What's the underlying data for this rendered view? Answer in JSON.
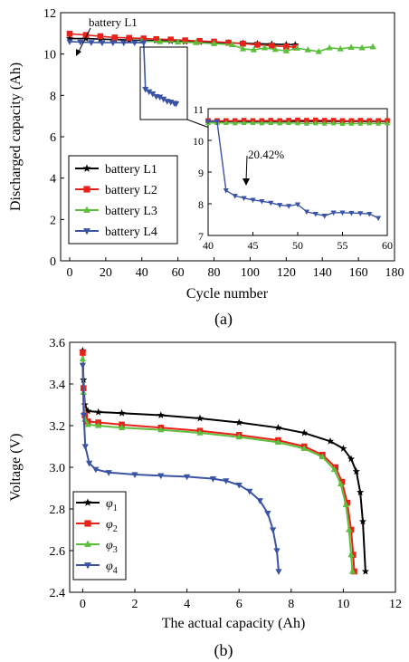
{
  "figure": {
    "panel_a_label": "(a)",
    "panel_b_label": "(b)"
  },
  "chart_data": [
    {
      "type": "line",
      "xlabel": "Cycle number",
      "ylabel": "Discharged capacity (Ah)",
      "xlim": [
        -5,
        180
      ],
      "ylim": [
        0,
        12
      ],
      "xticks": [
        0,
        20,
        40,
        60,
        80,
        100,
        120,
        140,
        160,
        180
      ],
      "yticks": [
        0,
        2,
        4,
        6,
        8,
        10,
        12
      ],
      "legend_position": "bottom-left",
      "annotation": "battery L1",
      "series": [
        {
          "name": "battery L1",
          "color": "#000000",
          "marker": "star",
          "x": [
            0,
            9,
            17,
            25,
            33,
            41,
            48,
            56,
            64,
            72,
            80,
            88,
            96,
            104,
            112,
            120,
            125
          ],
          "y": [
            10.75,
            10.75,
            10.72,
            10.7,
            10.68,
            10.66,
            10.65,
            10.63,
            10.6,
            10.58,
            10.56,
            10.54,
            10.52,
            10.5,
            10.48,
            10.46,
            10.45
          ]
        },
        {
          "name": "battery L2",
          "color": "#e8221a",
          "marker": "square",
          "x": [
            0,
            9,
            17,
            25,
            33,
            41,
            48,
            56,
            64,
            72,
            80,
            88,
            96,
            104,
            112,
            120,
            125
          ],
          "y": [
            10.98,
            10.92,
            10.86,
            10.8,
            10.78,
            10.75,
            10.72,
            10.7,
            10.66,
            10.63,
            10.6,
            10.55,
            10.5,
            10.45,
            10.4,
            10.36,
            10.33
          ]
        },
        {
          "name": "battery L3",
          "color": "#5bbf3c",
          "marker": "triangle-up",
          "x": [
            40,
            50,
            60,
            70,
            80,
            90,
            96,
            102,
            108,
            114,
            120,
            126,
            132,
            138,
            144,
            150,
            156,
            162,
            168
          ],
          "y": [
            10.62,
            10.6,
            10.58,
            10.55,
            10.5,
            10.45,
            10.25,
            10.2,
            10.3,
            10.22,
            10.15,
            10.28,
            10.2,
            10.12,
            10.3,
            10.25,
            10.32,
            10.3,
            10.35
          ]
        },
        {
          "name": "battery L4",
          "color": "#3a53a4",
          "marker": "triangle-down",
          "x": [
            0,
            6,
            12,
            18,
            24,
            30,
            36,
            41,
            42,
            44,
            46,
            48,
            50,
            52,
            54,
            56,
            58,
            59
          ],
          "y": [
            10.6,
            10.58,
            10.56,
            10.55,
            10.55,
            10.55,
            10.55,
            10.55,
            8.3,
            8.18,
            8.08,
            7.95,
            7.92,
            7.82,
            7.72,
            7.68,
            7.62,
            7.6
          ]
        }
      ]
    },
    {
      "type": "line",
      "inset": true,
      "xlim": [
        40,
        60
      ],
      "ylim": [
        7,
        11
      ],
      "xticks": [
        40,
        45,
        50,
        55,
        60
      ],
      "yticks": [
        7,
        8,
        9,
        10,
        11
      ],
      "annotation": "20.42%",
      "series": [
        {
          "name": "battery L1",
          "color": "#000000",
          "marker": "star",
          "x": [
            40,
            42,
            44,
            46,
            48,
            50,
            52,
            54,
            56,
            58,
            60
          ],
          "y": [
            10.6,
            10.6,
            10.6,
            10.6,
            10.6,
            10.6,
            10.6,
            10.6,
            10.6,
            10.6,
            10.6
          ]
        },
        {
          "name": "battery L2",
          "color": "#e8221a",
          "marker": "square",
          "x": [
            40,
            41,
            42,
            43,
            44,
            45,
            46,
            47,
            48,
            49,
            50,
            51,
            52,
            53,
            54,
            55,
            56,
            57,
            58,
            59,
            60
          ],
          "y": [
            10.62,
            10.62,
            10.62,
            10.62,
            10.63,
            10.62,
            10.62,
            10.63,
            10.62,
            10.63,
            10.64,
            10.63,
            10.64,
            10.63,
            10.63,
            10.62,
            10.62,
            10.63,
            10.62,
            10.62,
            10.62
          ]
        },
        {
          "name": "battery L3",
          "color": "#5bbf3c",
          "marker": "triangle-up",
          "x": [
            40,
            41,
            42,
            43,
            44,
            45,
            46,
            47,
            48,
            49,
            50,
            51,
            52,
            53,
            54,
            55,
            56,
            57,
            58,
            59,
            60
          ],
          "y": [
            10.55,
            10.55,
            10.55,
            10.54,
            10.55,
            10.55,
            10.54,
            10.55,
            10.54,
            10.55,
            10.54,
            10.53,
            10.54,
            10.53,
            10.54,
            10.52,
            10.53,
            10.53,
            10.54,
            10.53,
            10.54
          ]
        },
        {
          "name": "battery L4",
          "color": "#3a53a4",
          "marker": "triangle-down",
          "x": [
            40,
            41,
            42,
            43,
            44,
            45,
            46,
            47,
            48,
            49,
            50,
            51,
            52,
            53,
            54,
            55,
            56,
            57,
            58,
            59
          ],
          "y": [
            10.6,
            10.6,
            8.42,
            8.25,
            8.18,
            8.12,
            8.08,
            8.03,
            7.96,
            7.93,
            7.98,
            7.75,
            7.68,
            7.62,
            7.72,
            7.72,
            7.71,
            7.7,
            7.68,
            7.55
          ]
        }
      ]
    },
    {
      "type": "line",
      "xlabel": "The actual capacity (Ah)",
      "ylabel": "Voltage (V)",
      "xlim": [
        -0.5,
        12
      ],
      "ylim": [
        2.4,
        3.6
      ],
      "xticks": [
        0,
        2,
        4,
        6,
        8,
        10,
        12
      ],
      "yticks": [
        2.4,
        2.6,
        2.8,
        3.0,
        3.2,
        3.4,
        3.6
      ],
      "legend_position": "bottom-left",
      "series": [
        {
          "name": "φ1",
          "color": "#000000",
          "marker": "star",
          "x": [
            0,
            0.03,
            0.08,
            0.2,
            0.6,
            1.5,
            3,
            4.5,
            6,
            7.5,
            8.5,
            9.5,
            10,
            10.3,
            10.5,
            10.65,
            10.75,
            10.85
          ],
          "y": [
            3.56,
            3.42,
            3.3,
            3.27,
            3.265,
            3.26,
            3.25,
            3.235,
            3.215,
            3.19,
            3.165,
            3.125,
            3.09,
            3.04,
            2.98,
            2.88,
            2.74,
            2.5
          ]
        },
        {
          "name": "φ2",
          "color": "#e8221a",
          "marker": "square",
          "x": [
            0,
            0.03,
            0.08,
            0.2,
            0.6,
            1.5,
            3,
            4.5,
            6,
            7.5,
            8.5,
            9.2,
            9.7,
            9.95,
            10.15,
            10.3,
            10.38,
            10.42
          ],
          "y": [
            3.55,
            3.38,
            3.25,
            3.22,
            3.215,
            3.205,
            3.19,
            3.175,
            3.155,
            3.13,
            3.1,
            3.06,
            3.0,
            2.93,
            2.83,
            2.7,
            2.58,
            2.5
          ]
        },
        {
          "name": "φ3",
          "color": "#5bbf3c",
          "marker": "triangle-up",
          "x": [
            0,
            0.03,
            0.08,
            0.2,
            0.6,
            1.5,
            3,
            4.5,
            6,
            7.5,
            8.5,
            9.2,
            9.65,
            9.9,
            10.1,
            10.22,
            10.3,
            10.35
          ],
          "y": [
            3.52,
            3.36,
            3.23,
            3.205,
            3.2,
            3.19,
            3.18,
            3.165,
            3.145,
            3.12,
            3.09,
            3.05,
            2.99,
            2.92,
            2.82,
            2.7,
            2.58,
            2.5
          ]
        },
        {
          "name": "φ4",
          "color": "#3a53a4",
          "marker": "triangle-down",
          "x": [
            0,
            0.04,
            0.1,
            0.25,
            0.5,
            1,
            2,
            3,
            4,
            5,
            5.5,
            6,
            6.4,
            6.8,
            7.1,
            7.3,
            7.45,
            7.52
          ],
          "y": [
            3.49,
            3.25,
            3.1,
            3.02,
            2.99,
            2.975,
            2.965,
            2.96,
            2.955,
            2.945,
            2.935,
            2.915,
            2.885,
            2.84,
            2.78,
            2.7,
            2.6,
            2.5
          ]
        }
      ]
    }
  ]
}
